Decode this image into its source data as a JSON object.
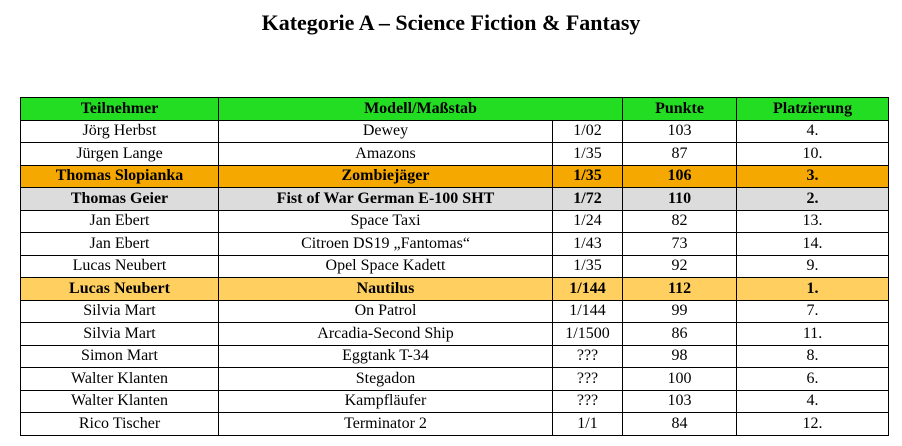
{
  "title": "Kategorie A – Science Fiction & Fantasy",
  "table": {
    "headers": {
      "participant": "Teilnehmer",
      "model": "Modell/Maßstab",
      "points": "Punkte",
      "placement": "Platzierung"
    },
    "highlight_colors": {
      "header": "#22dd22",
      "first_place": "#ffd060",
      "second_place": "#dcdcdc",
      "third_place": "#f5a800"
    },
    "rows": [
      {
        "participant": "Jörg Herbst",
        "model": "Dewey",
        "scale": "1/02",
        "points": "103",
        "placement": "4.",
        "highlight": "none"
      },
      {
        "participant": "Jürgen Lange",
        "model": "Amazons",
        "scale": "1/35",
        "points": "87",
        "placement": "10.",
        "highlight": "none"
      },
      {
        "participant": "Thomas Slopianka",
        "model": "Zombiejäger",
        "scale": "1/35",
        "points": "106",
        "placement": "3.",
        "highlight": "bronze"
      },
      {
        "participant": "Thomas Geier",
        "model": "Fist of War German E-100 SHT",
        "scale": "1/72",
        "points": "110",
        "placement": "2.",
        "highlight": "silver"
      },
      {
        "participant": "Jan Ebert",
        "model": "Space Taxi",
        "scale": "1/24",
        "points": "82",
        "placement": "13.",
        "highlight": "none"
      },
      {
        "participant": "Jan Ebert",
        "model": "Citroen DS19 „Fantomas“",
        "scale": "1/43",
        "points": "73",
        "placement": "14.",
        "highlight": "none"
      },
      {
        "participant": "Lucas Neubert",
        "model": "Opel Space Kadett",
        "scale": "1/35",
        "points": "92",
        "placement": "9.",
        "highlight": "none"
      },
      {
        "participant": "Lucas Neubert",
        "model": "Nautilus",
        "scale": "1/144",
        "points": "112",
        "placement": "1.",
        "highlight": "gold"
      },
      {
        "participant": "Silvia Mart",
        "model": "On Patrol",
        "scale": "1/144",
        "points": "99",
        "placement": "7.",
        "highlight": "none"
      },
      {
        "participant": "Silvia Mart",
        "model": "Arcadia-Second Ship",
        "scale": "1/1500",
        "points": "86",
        "placement": "11.",
        "highlight": "none"
      },
      {
        "participant": "Simon Mart",
        "model": "Eggtank T-34",
        "scale": "???",
        "points": "98",
        "placement": "8.",
        "highlight": "none"
      },
      {
        "participant": "Walter Klanten",
        "model": "Stegadon",
        "scale": "???",
        "points": "100",
        "placement": "6.",
        "highlight": "none"
      },
      {
        "participant": "Walter Klanten",
        "model": "Kampfläufer",
        "scale": "???",
        "points": "103",
        "placement": "4.",
        "highlight": "none"
      },
      {
        "participant": "Rico Tischer",
        "model": "Terminator 2",
        "scale": "1/1",
        "points": "84",
        "placement": "12.",
        "highlight": "none"
      }
    ]
  }
}
